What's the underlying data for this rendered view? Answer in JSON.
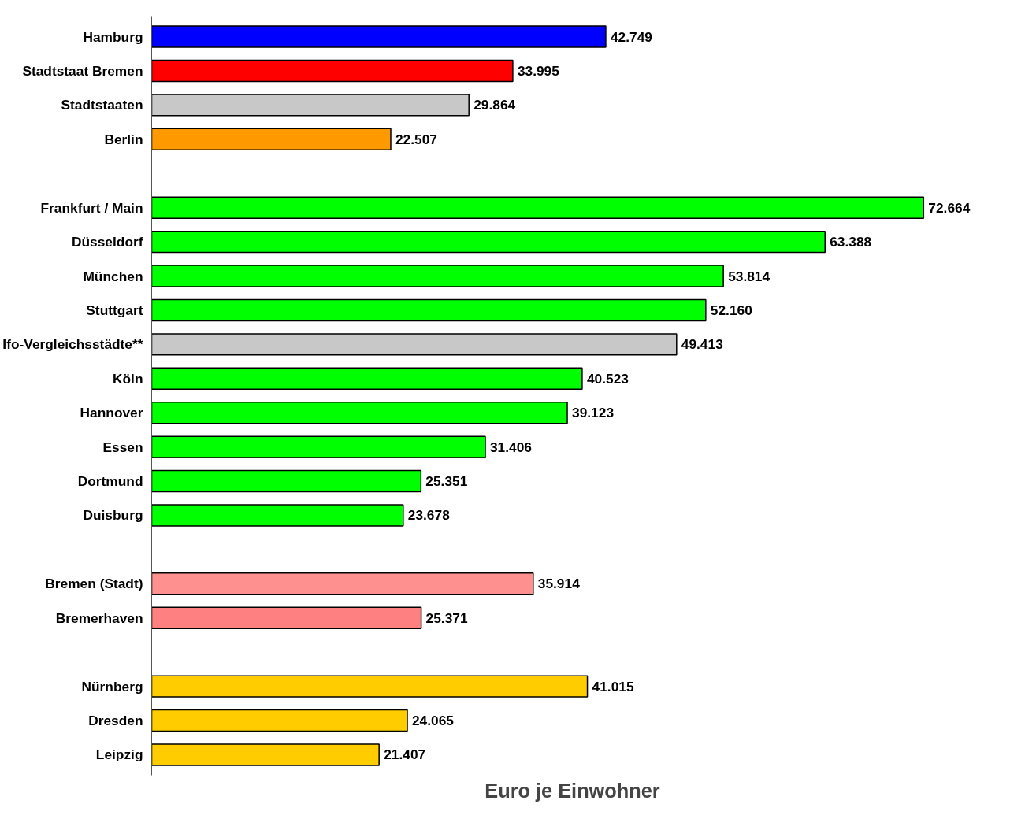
{
  "chart_data": {
    "type": "bar",
    "orientation": "horizontal",
    "xlabel": "Euro je Einwohner",
    "tick_labels": "y",
    "grid": false,
    "categories": [
      "Hamburg",
      "Stadtstaat Bremen",
      "Stadtstaaten",
      "Berlin",
      null,
      "Frankfurt / Main",
      "Düsseldorf",
      "München",
      "Stuttgart",
      "Ifo-Vergleichsstädte**",
      "Köln",
      "Hannover",
      "Essen",
      "Dortmund",
      "Duisburg",
      null,
      "Bremen (Stadt)",
      "Bremerhaven",
      null,
      "Nürnberg",
      "Dresden",
      "Leipzig"
    ],
    "values": [
      42749,
      33995,
      29864,
      22507,
      null,
      72664,
      63388,
      53814,
      52160,
      49413,
      40523,
      39123,
      31406,
      25351,
      23678,
      null,
      35914,
      25371,
      null,
      41015,
      24065,
      21407
    ],
    "value_labels": [
      "42.749",
      "33.995",
      "29.864",
      "22.507",
      null,
      "72.664",
      "63.388",
      "53.814",
      "52.160",
      "49.413",
      "40.523",
      "39.123",
      "31.406",
      "25.351",
      "23.678",
      null,
      "35.914",
      "25.371",
      null,
      "41.015",
      "24.065",
      "21.407"
    ],
    "colors": [
      "#0000ff",
      "#ff0000",
      "#c8c8c8",
      "#ff9900",
      null,
      "#00ff00",
      "#00ff00",
      "#00ff00",
      "#00ff00",
      "#c8c8c8",
      "#00ff00",
      "#00ff00",
      "#00ff00",
      "#00ff00",
      "#00ff00",
      null,
      "#ff9090",
      "#ff8080",
      null,
      "#ffcc00",
      "#ffcc00",
      "#ffcc00"
    ]
  }
}
